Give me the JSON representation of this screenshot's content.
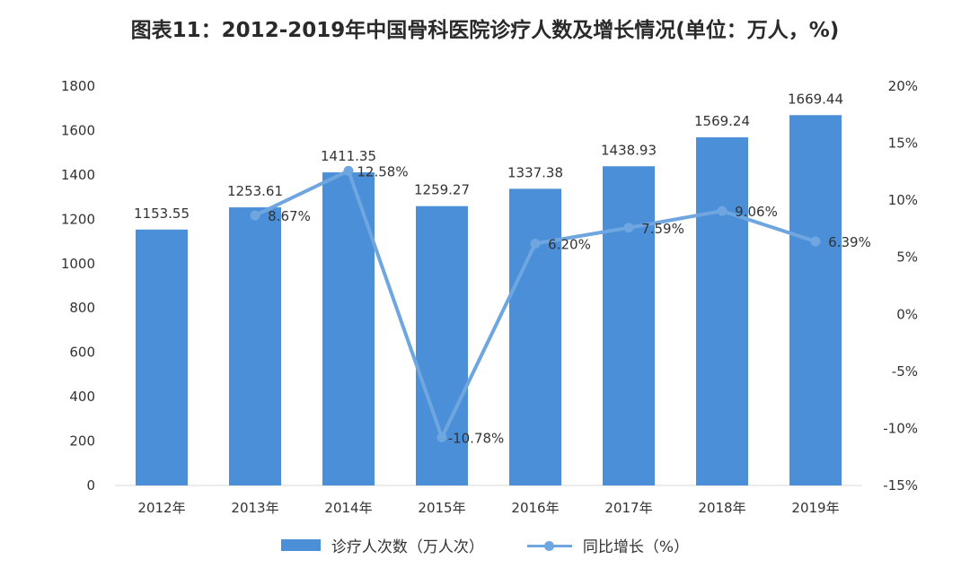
{
  "chart_data": {
    "type": "bar",
    "title": "图表11：2012-2019年中国骨科医院诊疗人数及增长情况(单位：万人，%)",
    "categories": [
      "2012年",
      "2013年",
      "2014年",
      "2015年",
      "2016年",
      "2017年",
      "2018年",
      "2019年"
    ],
    "series": [
      {
        "name": "诊疗人次数（万人次）",
        "type": "bar",
        "axis": "left",
        "values": [
          1153.55,
          1253.61,
          1411.35,
          1259.27,
          1337.38,
          1438.93,
          1569.24,
          1669.44
        ],
        "labels": [
          "1153.55",
          "1253.61",
          "1411.35",
          "1259.27",
          "1337.38",
          "1438.93",
          "1569.24",
          "1669.44"
        ]
      },
      {
        "name": "同比增长（%）",
        "type": "line",
        "axis": "right",
        "values": [
          null,
          8.67,
          12.58,
          -10.78,
          6.2,
          7.59,
          9.06,
          6.39
        ],
        "labels": [
          "",
          "8.67%",
          "12.58%",
          "-10.78%",
          "6.20%",
          "7.59%",
          "9.06%",
          "6.39%"
        ]
      }
    ],
    "y_left": {
      "ylim": [
        0,
        1800
      ],
      "ticks": [
        "0",
        "200",
        "400",
        "600",
        "800",
        "1000",
        "1200",
        "1400",
        "1600",
        "1800"
      ]
    },
    "y_right": {
      "ylim": [
        -15,
        20
      ],
      "ticks": [
        "-15%",
        "-10%",
        "-5%",
        "0%",
        "5%",
        "10%",
        "15%",
        "20%"
      ]
    },
    "grid": false,
    "legend_position": "bottom",
    "colors": {
      "bar": "#4a8fd8",
      "line": "#6fa6e0"
    }
  }
}
